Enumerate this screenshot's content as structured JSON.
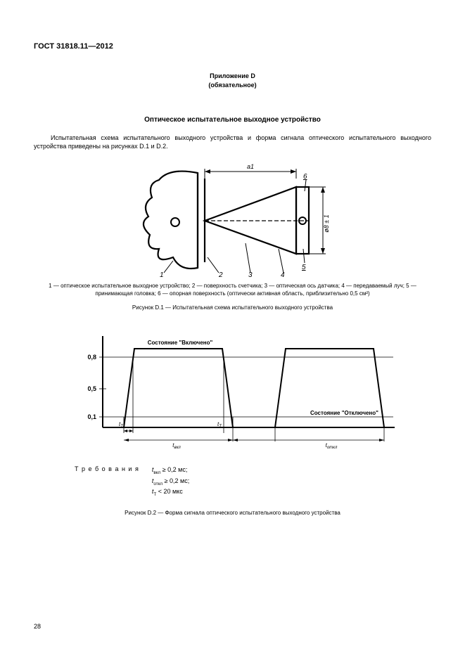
{
  "doc_id": "ГОСТ 31818.11—2012",
  "annex_label": "Приложение D",
  "annex_type": "(обязательное)",
  "figure_main_title": "Оптическое испытательное выходное устройство",
  "intro_text": "Испытательная схема испытательного выходного устройства и форма сигнала оптического испытательного выходного устройства приведены на рисунках D.1 и D.2.",
  "fig1": {
    "a1_label": "a1",
    "dia_label": "ø8 ± 1",
    "callouts": [
      "1",
      "2",
      "3",
      "4",
      "5",
      "6"
    ],
    "legend": "1 — оптическое испытательное выходное устройство; 2 — поверхность счетчика; 3 — оптическая ось датчика; 4 — передаваемый луч; 5 — принимающая головка; 6 — опорная поверхность (оптически активная область, приблизительно 0,5 см²)",
    "caption": "Рисунок  D.1 — Испытательная схема испытательного выходного устройства",
    "colors": {
      "stroke": "#000000",
      "bg": "#ffffff"
    }
  },
  "fig2": {
    "y_ticks": [
      "0,8",
      "0,5",
      "0,1"
    ],
    "state_on": "Состояние \"Включено\"",
    "state_off": "Состояние \"Отключено\"",
    "t_T": "t",
    "t_T_sub": "T",
    "t_on": "t",
    "t_on_sub": "вкл",
    "t_off": "t",
    "t_off_sub": "откл",
    "caption": "Рисунок  D.2 — Форма сигнала оптического испытательного выходного устройства",
    "colors": {
      "stroke": "#000000",
      "bg": "#ffffff"
    }
  },
  "requirements_label": "Т р е б о в а н и я",
  "req1_html": "<i>t</i><sub>вкл</sub>  ≥ 0,2 мс;",
  "req2_html": "<i>t</i><sub>откл</sub> ≥ 0,2 мс;",
  "req3_html": "<i>t</i><sub>T</sub> &lt; 20 мкс",
  "page_number": "28"
}
